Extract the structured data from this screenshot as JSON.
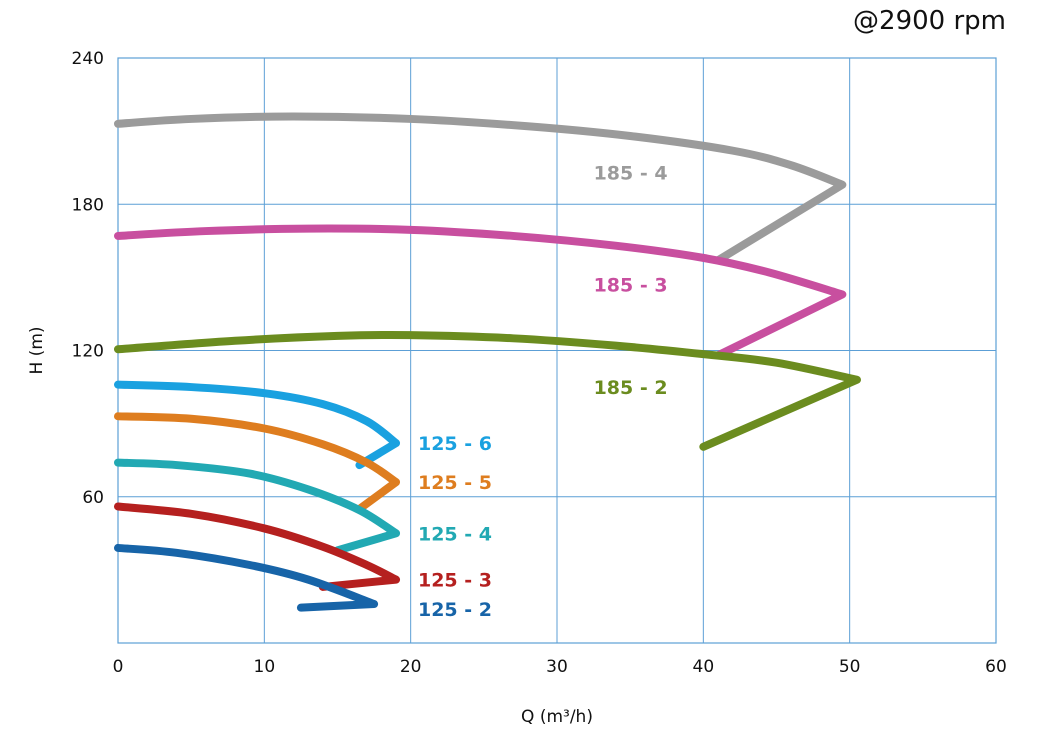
{
  "header": {
    "speed_label": "@2900 rpm"
  },
  "chart_data": {
    "type": "line",
    "title": "",
    "xlabel": "Q (m³/h)",
    "ylabel": "H (m)",
    "xlim": [
      0,
      60
    ],
    "ylim": [
      0,
      240
    ],
    "xticks": [
      "0",
      "10",
      "20",
      "30",
      "40",
      "50",
      "60"
    ],
    "yticks": [
      "60",
      "120",
      "180",
      "240"
    ],
    "x_tick_values": [
      0,
      10,
      20,
      30,
      40,
      50,
      60
    ],
    "y_tick_values": [
      60,
      120,
      180,
      240
    ],
    "grid": true,
    "series": [
      {
        "name": "185 - 4",
        "color": "#9b9b9b",
        "points": [
          [
            0,
            213
          ],
          [
            5,
            215
          ],
          [
            12,
            216
          ],
          [
            20,
            215
          ],
          [
            28,
            212
          ],
          [
            35,
            208
          ],
          [
            42,
            202
          ],
          [
            46,
            196
          ],
          [
            49.5,
            188
          ],
          [
            41,
            157
          ]
        ],
        "label_at": [
          32.5,
          193
        ]
      },
      {
        "name": "185 - 3",
        "color": "#c84f9f",
        "points": [
          [
            0,
            167
          ],
          [
            6,
            169
          ],
          [
            13,
            170
          ],
          [
            20,
            169.5
          ],
          [
            27,
            167
          ],
          [
            34,
            163
          ],
          [
            40,
            158
          ],
          [
            44.5,
            152
          ],
          [
            49.5,
            143
          ],
          [
            41,
            118
          ]
        ],
        "label_at": [
          32.5,
          147
        ]
      },
      {
        "name": "185 - 2",
        "color": "#6b8c1f",
        "points": [
          [
            0,
            120.5
          ],
          [
            8,
            124
          ],
          [
            15,
            126
          ],
          [
            20,
            126.3
          ],
          [
            27,
            125
          ],
          [
            34,
            122
          ],
          [
            40,
            118.5
          ],
          [
            45,
            115
          ],
          [
            50.5,
            108
          ],
          [
            40,
            80.5
          ]
        ],
        "label_at": [
          32.5,
          105
        ]
      },
      {
        "name": "125 - 6",
        "color": "#1aa1e0",
        "points": [
          [
            0,
            106
          ],
          [
            5,
            105
          ],
          [
            10,
            102.5
          ],
          [
            14,
            98
          ],
          [
            17,
            91
          ],
          [
            19,
            82
          ],
          [
            16.5,
            73
          ]
        ],
        "label_at": [
          20.5,
          82
        ]
      },
      {
        "name": "125 - 5",
        "color": "#de7d1f",
        "points": [
          [
            0,
            93
          ],
          [
            5,
            92
          ],
          [
            10,
            88
          ],
          [
            14,
            81.5
          ],
          [
            17,
            74
          ],
          [
            19,
            66
          ],
          [
            16.5,
            55
          ]
        ],
        "label_at": [
          20.5,
          66
        ]
      },
      {
        "name": "125 - 4",
        "color": "#22a9b3",
        "points": [
          [
            0,
            74
          ],
          [
            4,
            73
          ],
          [
            9,
            69.5
          ],
          [
            13,
            63
          ],
          [
            16.5,
            54.5
          ],
          [
            19,
            45
          ],
          [
            15,
            38
          ]
        ],
        "label_at": [
          20.5,
          45
        ]
      },
      {
        "name": "125 - 3",
        "color": "#b5201f",
        "points": [
          [
            0,
            56
          ],
          [
            5,
            53
          ],
          [
            10,
            47
          ],
          [
            14,
            39.5
          ],
          [
            17,
            32
          ],
          [
            19,
            26
          ],
          [
            14,
            23
          ]
        ],
        "label_at": [
          20.5,
          26
        ]
      },
      {
        "name": "125 - 2",
        "color": "#1764a8",
        "points": [
          [
            0,
            39
          ],
          [
            4,
            37
          ],
          [
            9,
            32
          ],
          [
            13,
            26
          ],
          [
            17.5,
            16
          ],
          [
            12.5,
            14.5
          ]
        ],
        "label_at": [
          20.5,
          14
        ]
      }
    ]
  }
}
